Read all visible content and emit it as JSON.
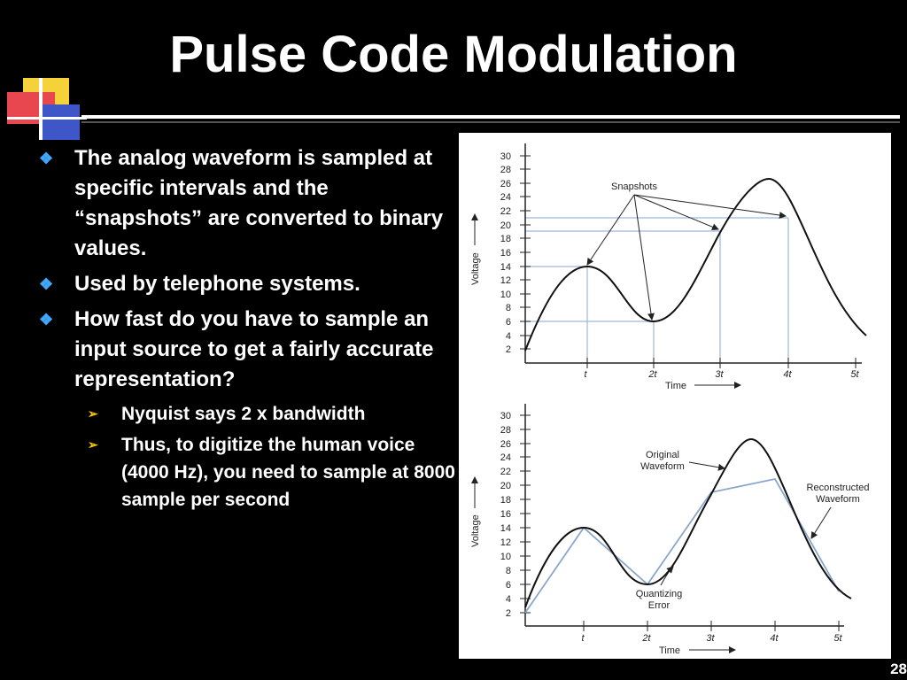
{
  "slide": {
    "title": "Pulse Code Modulation",
    "page_number": "28",
    "bullets": [
      "The analog waveform is sampled at specific intervals and the “snapshots” are converted to binary values.",
      "Used by telephone systems.",
      "How fast do you have to sample an input source to get a fairly accurate representation?"
    ],
    "sub_bullets": [
      "Nyquist says 2 x bandwidth",
      "Thus, to digitize the human voice (4000 Hz), you need to sample at 8000 sample per second"
    ]
  },
  "figure": {
    "top": {
      "ylabel": "Voltage",
      "xlabel": "Time",
      "yticks": [
        "30",
        "28",
        "26",
        "24",
        "22",
        "20",
        "18",
        "16",
        "14",
        "12",
        "10",
        "8",
        "6",
        "4",
        "2"
      ],
      "xticks": [
        "t",
        "2t",
        "3t",
        "4t",
        "5t"
      ],
      "annotation": "Snapshots",
      "samples": [
        [
          1,
          14
        ],
        [
          2,
          6
        ],
        [
          3,
          19
        ],
        [
          4,
          21
        ]
      ]
    },
    "bottom": {
      "ylabel": "Voltage",
      "xlabel": "Time",
      "yticks": [
        "30",
        "28",
        "26",
        "24",
        "22",
        "20",
        "18",
        "16",
        "14",
        "12",
        "10",
        "8",
        "6",
        "4",
        "2"
      ],
      "xticks": [
        "t",
        "2t",
        "3t",
        "4t",
        "5t"
      ],
      "label_original": [
        "Original",
        "Waveform"
      ],
      "label_reconstructed": [
        "Reconstructed",
        "Waveform"
      ],
      "label_error": [
        "Quantizing",
        "Error"
      ],
      "reconstructed": [
        [
          0,
          2
        ],
        [
          1,
          14
        ],
        [
          2,
          6
        ],
        [
          3,
          19
        ],
        [
          4,
          21
        ],
        [
          5,
          5
        ]
      ]
    }
  },
  "colors": {
    "bullet_marker": "#3fa8ff",
    "sub_marker": "#ffc800",
    "sample_line": "#9fb6d6"
  }
}
